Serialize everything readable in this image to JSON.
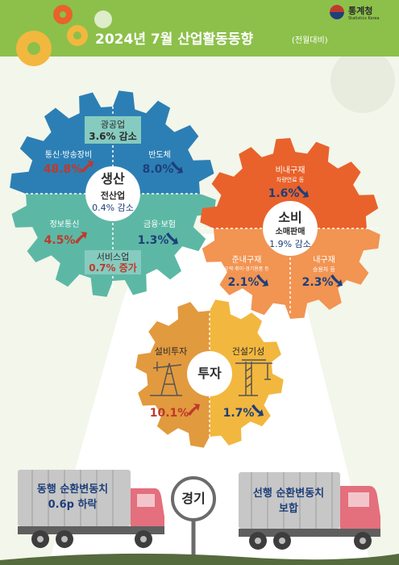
{
  "header": {
    "title": "2024년 7월 산업활동동향",
    "subtitle": "(전월대비)",
    "brand_kr": "통계청",
    "brand_en": "Statistics Korea"
  },
  "production": {
    "title": "생산",
    "total_label": "전산업",
    "total_value": "0.4% 감소",
    "mining_label": "광공업",
    "mining_value": "3.6% 감소",
    "service_label": "서비스업",
    "service_value": "0.7% 증가",
    "items": [
      {
        "label": "통신·방송장비",
        "value": "48.8%",
        "direction": "up"
      },
      {
        "label": "반도체",
        "value": "8.0%",
        "direction": "down"
      },
      {
        "label": "정보통신",
        "value": "4.5%",
        "direction": "up"
      },
      {
        "label": "금융·보험",
        "value": "1.3%",
        "direction": "down"
      }
    ]
  },
  "consumption": {
    "title": "소비",
    "total_label": "소매판매",
    "total_value": "1.9% 감소",
    "items": [
      {
        "label": "비내구재",
        "sublabel": "차량연료 등",
        "value": "1.6%",
        "direction": "down"
      },
      {
        "label": "준내구재",
        "sublabel": "오락·취미·경기용품 등",
        "value": "2.1%",
        "direction": "down"
      },
      {
        "label": "내구재",
        "sublabel": "승용차 등",
        "value": "2.3%",
        "direction": "down"
      }
    ]
  },
  "investment": {
    "title": "투자",
    "items": [
      {
        "label": "설비투자",
        "value": "10.1%",
        "direction": "up"
      },
      {
        "label": "건설기성",
        "value": "1.7%",
        "direction": "down"
      }
    ]
  },
  "economy": {
    "title": "경기",
    "coincident_line1": "동행 순환변동치",
    "coincident_line2": "0.6p 하락",
    "leading_line1": "선행 순환변동치",
    "leading_line2": "보합"
  },
  "colors": {
    "header_bg": "#8cc04a",
    "production_top": "#2c7fb5",
    "production_bottom": "#5cb8a5",
    "consumption_top": "#e9622b",
    "consumption_bottom": "#f29452",
    "investment_left": "#e29a3e",
    "investment_right": "#f2b73e",
    "truck_body": "#e46f7d",
    "up_arrow": "#c0392b",
    "down_arrow": "#1e3f7a"
  }
}
